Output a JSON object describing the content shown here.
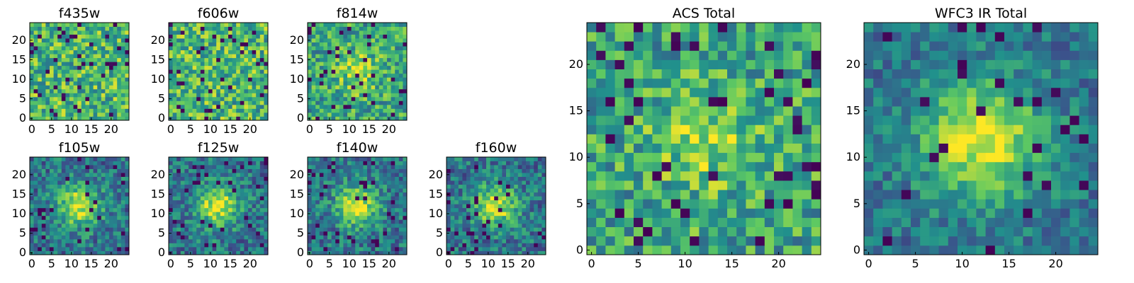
{
  "chart_data": [
    {
      "type": "heatmap",
      "title": "f435w",
      "xticks": [
        0,
        5,
        10,
        15,
        20
      ],
      "yticks": [
        0,
        5,
        10,
        15,
        20
      ],
      "xlim": [
        0,
        25
      ],
      "ylim": [
        0,
        25
      ],
      "grid": [
        25,
        25
      ],
      "colormap": "viridis",
      "pattern": "noise",
      "seed": 11
    },
    {
      "type": "heatmap",
      "title": "f606w",
      "xticks": [
        0,
        5,
        10,
        15,
        20
      ],
      "yticks": [
        0,
        5,
        10,
        15,
        20
      ],
      "xlim": [
        0,
        25
      ],
      "ylim": [
        0,
        25
      ],
      "grid": [
        25,
        25
      ],
      "colormap": "viridis",
      "pattern": "noise",
      "seed": 23
    },
    {
      "type": "heatmap",
      "title": "f814w",
      "xticks": [
        0,
        5,
        10,
        15,
        20
      ],
      "yticks": [
        0,
        5,
        10,
        15,
        20
      ],
      "xlim": [
        0,
        25
      ],
      "ylim": [
        0,
        25
      ],
      "grid": [
        25,
        25
      ],
      "colormap": "viridis",
      "pattern": "weak-source",
      "seed": 37
    },
    {
      "type": "heatmap",
      "title": "f105w",
      "xticks": [
        0,
        5,
        10,
        15,
        20
      ],
      "yticks": [
        0,
        5,
        10,
        15,
        20
      ],
      "xlim": [
        0,
        25
      ],
      "ylim": [
        0,
        25
      ],
      "grid": [
        25,
        25
      ],
      "colormap": "viridis",
      "pattern": "source",
      "seed": 41
    },
    {
      "type": "heatmap",
      "title": "f125w",
      "xticks": [
        0,
        5,
        10,
        15,
        20
      ],
      "yticks": [
        0,
        5,
        10,
        15,
        20
      ],
      "xlim": [
        0,
        25
      ],
      "ylim": [
        0,
        25
      ],
      "grid": [
        25,
        25
      ],
      "colormap": "viridis",
      "pattern": "source",
      "seed": 53
    },
    {
      "type": "heatmap",
      "title": "f140w",
      "xticks": [
        0,
        5,
        10,
        15,
        20
      ],
      "yticks": [
        0,
        5,
        10,
        15,
        20
      ],
      "xlim": [
        0,
        25
      ],
      "ylim": [
        0,
        25
      ],
      "grid": [
        25,
        25
      ],
      "colormap": "viridis",
      "pattern": "source",
      "seed": 67
    },
    {
      "type": "heatmap",
      "title": "f160w",
      "xticks": [
        0,
        5,
        10,
        15,
        20
      ],
      "yticks": [
        0,
        5,
        10,
        15,
        20
      ],
      "xlim": [
        0,
        25
      ],
      "ylim": [
        0,
        25
      ],
      "grid": [
        25,
        25
      ],
      "colormap": "viridis",
      "pattern": "source",
      "seed": 79
    },
    {
      "type": "heatmap",
      "title": "ACS Total",
      "xticks": [
        0,
        5,
        10,
        15,
        20
      ],
      "yticks": [
        0,
        5,
        10,
        15,
        20
      ],
      "xlim": [
        0,
        25
      ],
      "ylim": [
        0,
        25
      ],
      "grid": [
        25,
        25
      ],
      "colormap": "viridis",
      "pattern": "weak-source",
      "seed": 89
    },
    {
      "type": "heatmap",
      "title": "WFC3 IR Total",
      "xticks": [
        0,
        5,
        10,
        15,
        20
      ],
      "yticks": [
        0,
        5,
        10,
        15,
        20
      ],
      "xlim": [
        0,
        25
      ],
      "ylim": [
        0,
        25
      ],
      "grid": [
        25,
        25
      ],
      "colormap": "viridis",
      "pattern": "strong-source",
      "seed": 97
    }
  ],
  "colors": {
    "axis": "#000000",
    "background": "#ffffff",
    "viridis_stops": [
      "#440154",
      "#3b528b",
      "#21918c",
      "#5ec962",
      "#fde725"
    ]
  }
}
